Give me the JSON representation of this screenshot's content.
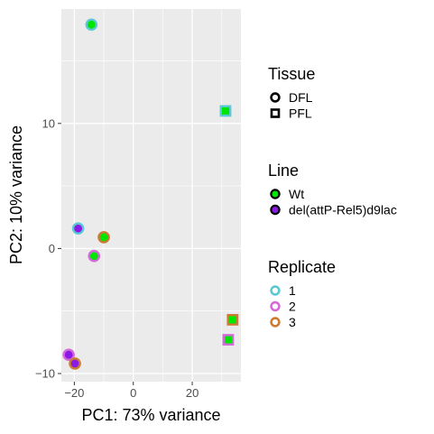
{
  "chart_data": {
    "type": "scatter",
    "xlabel": "PC1: 73% variance",
    "ylabel": "PC2: 10% variance",
    "xlim": [
      -24.4,
      36.5
    ],
    "ylim": [
      -10.65,
      19.15
    ],
    "x_ticks": [
      -20,
      0,
      20
    ],
    "y_ticks": [
      -10,
      0,
      10
    ],
    "grid": true,
    "legend_position": "right",
    "legends": [
      {
        "title": "Tissue",
        "type": "shape",
        "items": [
          {
            "label": "DFL",
            "shape": "circle"
          },
          {
            "label": "PFL",
            "shape": "square"
          }
        ]
      },
      {
        "title": "Line",
        "type": "fill",
        "items": [
          {
            "label": "Wt",
            "color": "#00e600"
          },
          {
            "label": "del(attP-Rel5)d9lac",
            "color": "#8c1ae6"
          }
        ]
      },
      {
        "title": "Replicate",
        "type": "stroke",
        "items": [
          {
            "label": "1",
            "color": "#5cc8d4"
          },
          {
            "label": "2",
            "color": "#d46ad9"
          },
          {
            "label": "3",
            "color": "#cd7a32"
          }
        ]
      }
    ],
    "points": [
      {
        "x": -14.2,
        "y": 17.9,
        "tissue": "DFL",
        "line": "Wt",
        "replicate": "1"
      },
      {
        "x": 31.3,
        "y": 11.0,
        "tissue": "PFL",
        "line": "Wt",
        "replicate": "1"
      },
      {
        "x": -18.7,
        "y": 1.6,
        "tissue": "DFL",
        "line": "del(attP-Rel5)d9lac",
        "replicate": "1"
      },
      {
        "x": -10.0,
        "y": 0.9,
        "tissue": "DFL",
        "line": "Wt",
        "replicate": "3"
      },
      {
        "x": -13.3,
        "y": -0.6,
        "tissue": "DFL",
        "line": "Wt",
        "replicate": "2"
      },
      {
        "x": 33.7,
        "y": -5.7,
        "tissue": "PFL",
        "line": "Wt",
        "replicate": "3"
      },
      {
        "x": 32.2,
        "y": -7.3,
        "tissue": "PFL",
        "line": "Wt",
        "replicate": "2"
      },
      {
        "x": -21.9,
        "y": -8.5,
        "tissue": "DFL",
        "line": "del(attP-Rel5)d9lac",
        "replicate": "2"
      },
      {
        "x": -19.8,
        "y": -9.2,
        "tissue": "DFL",
        "line": "del(attP-Rel5)d9lac",
        "replicate": "3"
      }
    ]
  }
}
